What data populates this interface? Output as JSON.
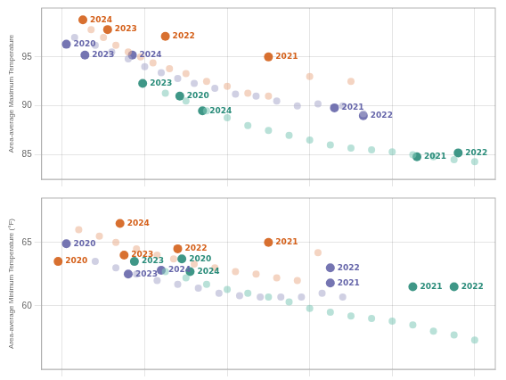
{
  "chart_data": [
    {
      "type": "scatter",
      "ylabel": "Area-average Maximum Temperature",
      "xlim": [
        1.5,
        12.5
      ],
      "xticks": [
        2,
        4,
        6,
        8,
        10,
        12
      ],
      "ylim": [
        82.5,
        100
      ],
      "yticks": [
        85,
        90,
        95
      ],
      "grid": true,
      "tick_labels": "y",
      "series": [
        {
          "color": "#EBB090",
          "x": [
            2.7,
            3.0,
            3.3,
            3.6,
            3.9,
            4.2,
            4.6,
            5.0,
            5.5,
            6.0,
            6.5,
            7.0,
            8.0,
            9.0
          ],
          "values": [
            97.8,
            97.0,
            96.2,
            95.5,
            95.0,
            94.4,
            93.8,
            93.3,
            92.5,
            92.0,
            91.3,
            91.0,
            93.0,
            92.5
          ]
        },
        {
          "color": "#AAAACC",
          "x": [
            2.3,
            2.8,
            3.2,
            3.6,
            4.0,
            4.4,
            4.8,
            5.2,
            5.7,
            6.2,
            6.7,
            7.2,
            7.7,
            8.2,
            8.8,
            9.3
          ],
          "values": [
            97.0,
            96.2,
            95.5,
            94.8,
            94.0,
            93.4,
            92.8,
            92.3,
            91.8,
            91.2,
            91.0,
            90.5,
            90.0,
            90.2,
            90.0,
            89.2
          ]
        },
        {
          "color": "#80C8B8",
          "x": [
            4.5,
            5.0,
            5.5,
            6.0,
            6.5,
            7.0,
            7.5,
            8.0,
            8.5,
            9.0,
            9.5,
            10.0,
            10.5,
            11.0,
            11.5,
            12.0
          ],
          "values": [
            91.3,
            90.5,
            89.5,
            88.8,
            88.0,
            87.5,
            87.0,
            86.5,
            86.0,
            85.7,
            85.5,
            85.3,
            85.0,
            84.8,
            84.5,
            84.3
          ]
        },
        {
          "colors": [
            "#6666AA",
            "#D4601A",
            "#D4601A",
            "#6666AA",
            "#6666AA",
            "#2A8C7A",
            "#D4601A",
            "#2A8C7A",
            "#2A8C7A",
            "#D4601A",
            "#6666AA",
            "#6666AA",
            "#2A8C7A",
            "#2A8C7A"
          ],
          "x": [
            2.1,
            2.5,
            3.1,
            2.55,
            3.7,
            3.95,
            4.5,
            4.85,
            5.4,
            7.0,
            8.6,
            9.3,
            10.6,
            11.6
          ],
          "values": [
            96.3,
            98.8,
            97.8,
            95.2,
            95.2,
            92.3,
            97.1,
            91.0,
            89.5,
            95.0,
            89.8,
            89.0,
            84.8,
            85.2
          ],
          "labels": [
            "2020",
            "2024",
            "2023",
            "2023",
            "2024",
            "2023",
            "2022",
            "2020",
            "2024",
            "2021",
            "2021",
            "2022",
            "2021",
            "2022"
          ]
        }
      ]
    },
    {
      "type": "scatter",
      "ylabel": "Area-average Minimum Temperature (°F)",
      "xlim": [
        1.5,
        12.5
      ],
      "xticks": [
        2,
        4,
        6,
        8,
        10,
        12
      ],
      "ylim": [
        55,
        68.5
      ],
      "yticks": [
        60,
        65
      ],
      "grid": true,
      "tick_labels": "y",
      "series": [
        {
          "color": "#EBB090",
          "x": [
            2.4,
            2.9,
            3.3,
            3.8,
            4.3,
            4.7,
            5.2,
            5.7,
            6.2,
            6.7,
            7.2,
            7.7,
            8.2
          ],
          "values": [
            66.0,
            65.5,
            65.0,
            64.5,
            64.0,
            63.7,
            63.3,
            63.0,
            62.7,
            62.5,
            62.2,
            62.0,
            64.2
          ]
        },
        {
          "color": "#AAAACC",
          "x": [
            2.8,
            3.3,
            3.8,
            4.3,
            4.8,
            5.3,
            5.8,
            6.3,
            6.8,
            7.3,
            7.8,
            8.3,
            8.8
          ],
          "values": [
            63.5,
            63.0,
            62.5,
            62.0,
            61.7,
            61.4,
            61.0,
            60.8,
            60.7,
            60.7,
            60.7,
            61.0,
            60.7
          ]
        },
        {
          "color": "#80C8B8",
          "x": [
            4.5,
            5.0,
            5.5,
            6.0,
            6.5,
            7.0,
            7.5,
            8.0,
            8.5,
            9.0,
            9.5,
            10.0,
            10.5,
            11.0,
            11.5,
            12.0
          ],
          "values": [
            62.7,
            62.2,
            61.7,
            61.3,
            61.0,
            60.7,
            60.3,
            59.8,
            59.5,
            59.2,
            59.0,
            58.8,
            58.5,
            58.0,
            57.7,
            57.3
          ]
        },
        {
          "colors": [
            "#6666AA",
            "#D4601A",
            "#D4601A",
            "#D4601A",
            "#2A8C7A",
            "#6666AA",
            "#6666AA",
            "#D4601A",
            "#2A8C7A",
            "#2A8C7A",
            "#D4601A",
            "#6666AA",
            "#6666AA",
            "#2A8C7A",
            "#2A8C7A"
          ],
          "x": [
            2.1,
            1.9,
            3.4,
            3.5,
            3.75,
            3.6,
            4.4,
            4.8,
            4.9,
            5.1,
            7.0,
            8.5,
            8.5,
            10.5,
            11.5
          ],
          "values": [
            64.9,
            63.5,
            66.5,
            64.0,
            63.5,
            62.5,
            62.8,
            64.5,
            63.7,
            62.7,
            65.0,
            63.0,
            61.8,
            61.5,
            61.5
          ],
          "labels": [
            "2020",
            "2020",
            "2024",
            "2023",
            "2023",
            "2023",
            "2024",
            "2022",
            "2020",
            "2024",
            "2021",
            "2022",
            "2021",
            "2021",
            "2022"
          ]
        }
      ]
    }
  ]
}
